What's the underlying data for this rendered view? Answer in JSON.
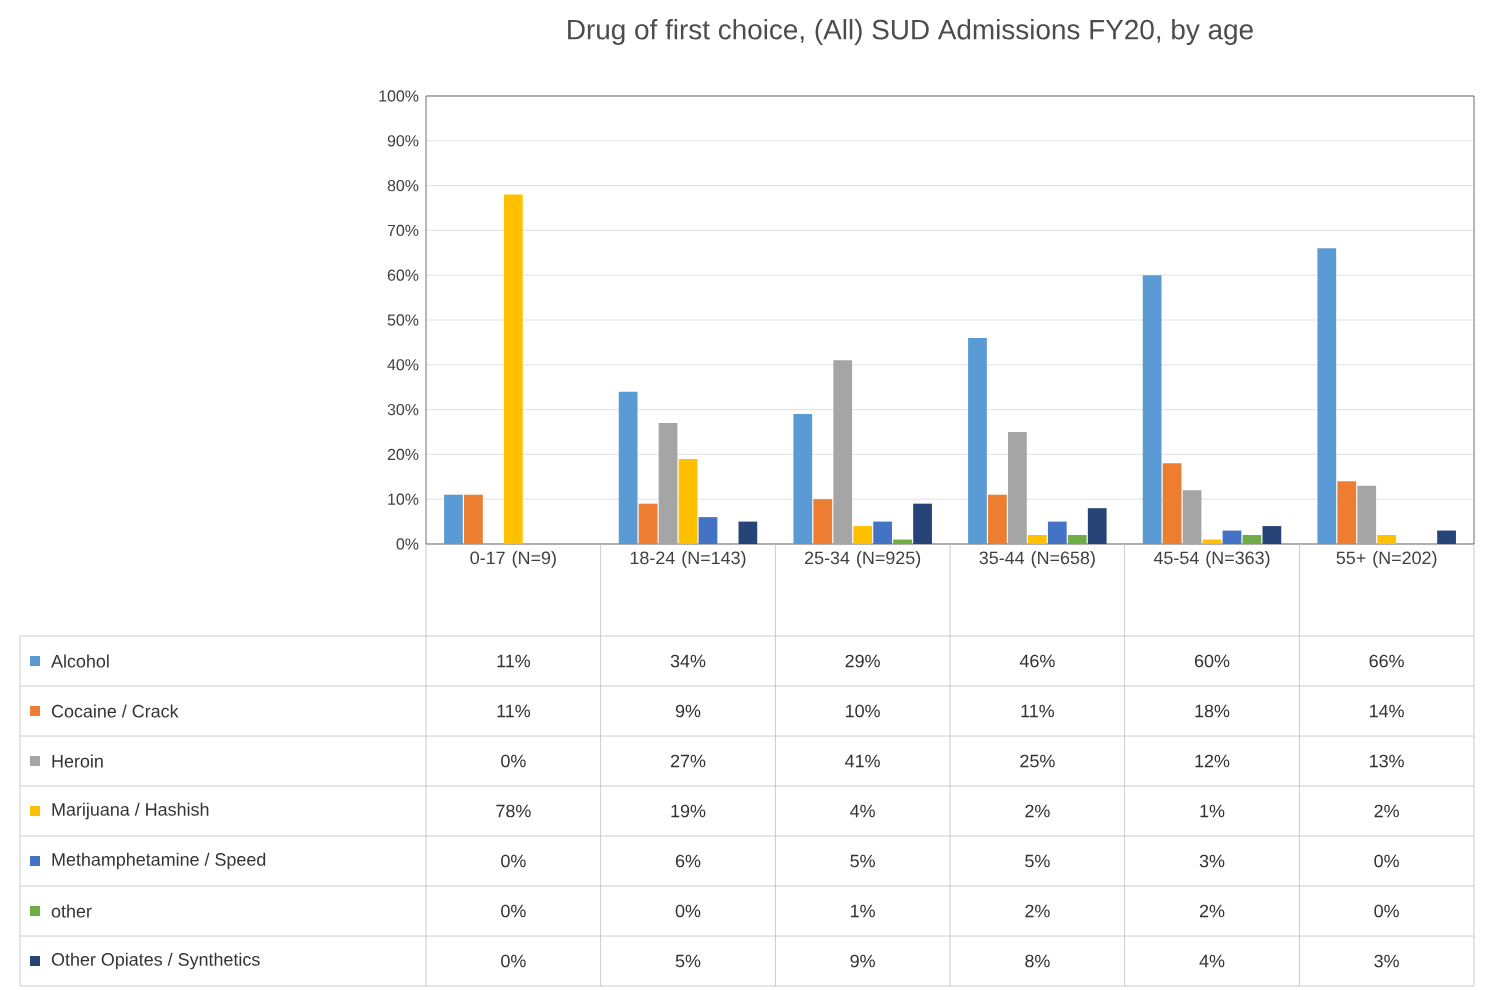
{
  "chart_data": {
    "type": "bar",
    "title": "Drug of first choice, (All) SUD Admissions FY20, by age",
    "categories": [
      "0-17 (N=9)",
      "18-24 (N=143)",
      "25-34 (N=925)",
      "35-44 (N=658)",
      "45-54 (N=363)",
      "55+ (N=202)"
    ],
    "series": [
      {
        "name": "Alcohol",
        "color": "#5b9bd5",
        "values": [
          11,
          34,
          29,
          46,
          60,
          66
        ],
        "value_labels": [
          "11%",
          "34%",
          "29%",
          "46%",
          "60%",
          "66%"
        ]
      },
      {
        "name": "Cocaine / Crack",
        "color": "#ed7d31",
        "values": [
          11,
          9,
          10,
          11,
          18,
          14
        ],
        "value_labels": [
          "11%",
          "9%",
          "10%",
          "11%",
          "18%",
          "14%"
        ]
      },
      {
        "name": "Heroin",
        "color": "#a5a5a5",
        "values": [
          0,
          27,
          41,
          25,
          12,
          13
        ],
        "value_labels": [
          "0%",
          "27%",
          "41%",
          "25%",
          "12%",
          "13%"
        ]
      },
      {
        "name": "Marijuana / Hashish",
        "color": "#ffc000",
        "values": [
          78,
          19,
          4,
          2,
          1,
          2
        ],
        "value_labels": [
          "78%",
          "19%",
          "4%",
          "2%",
          "1%",
          "2%"
        ]
      },
      {
        "name": "Methamphetamine / Speed",
        "color": "#4472c4",
        "values": [
          0,
          6,
          5,
          5,
          3,
          0
        ],
        "value_labels": [
          "0%",
          "6%",
          "5%",
          "5%",
          "3%",
          "0%"
        ]
      },
      {
        "name": "other",
        "color": "#70ad47",
        "values": [
          0,
          0,
          1,
          2,
          2,
          0
        ],
        "value_labels": [
          "0%",
          "0%",
          "1%",
          "2%",
          "2%",
          "0%"
        ]
      },
      {
        "name": "Other Opiates / Synthetics",
        "color": "#264478",
        "values": [
          0,
          5,
          9,
          8,
          4,
          3
        ],
        "value_labels": [
          "0%",
          "5%",
          "9%",
          "8%",
          "4%",
          "3%"
        ]
      }
    ],
    "ylim": [
      0,
      100
    ],
    "yticks": [
      {
        "value": 0,
        "label": "0%"
      },
      {
        "value": 10,
        "label": "10%"
      },
      {
        "value": 20,
        "label": "20%"
      },
      {
        "value": 30,
        "label": "30%"
      },
      {
        "value": 40,
        "label": "40%"
      },
      {
        "value": 50,
        "label": "50%"
      },
      {
        "value": 60,
        "label": "60%"
      },
      {
        "value": 70,
        "label": "70%"
      },
      {
        "value": 80,
        "label": "80%"
      },
      {
        "value": 90,
        "label": "90%"
      },
      {
        "value": 100,
        "label": "100%"
      }
    ],
    "grid": "y",
    "legend": "bottom"
  }
}
